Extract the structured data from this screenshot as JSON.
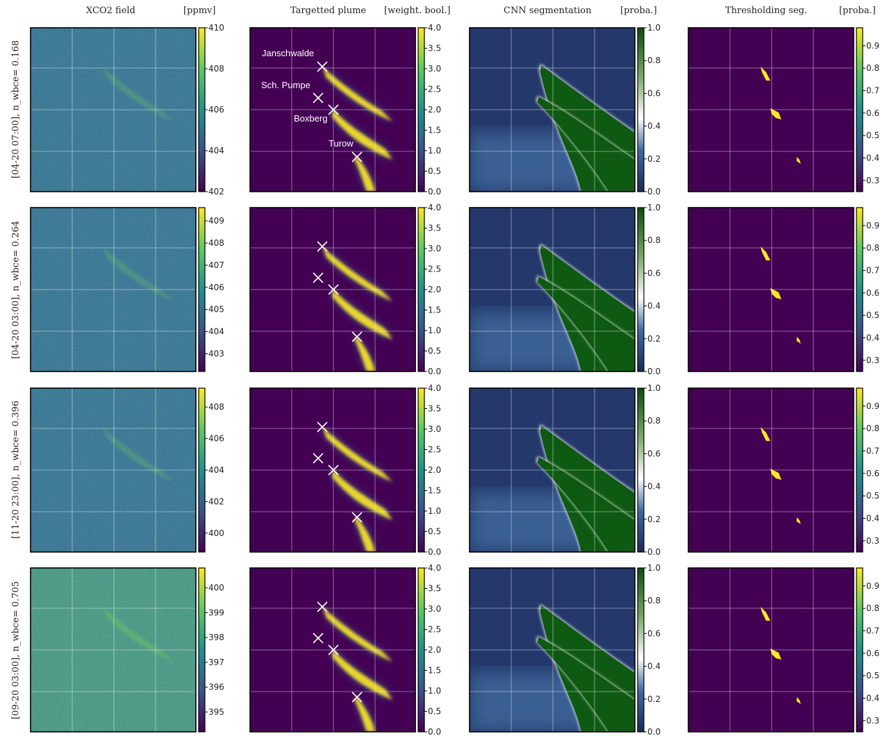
{
  "figure": {
    "columns": [
      {
        "title": "XCO2 field",
        "unit": "[ppmv]"
      },
      {
        "title": "Targetted plume",
        "unit": "[weight. bool.]"
      },
      {
        "title": "CNN segmentation",
        "unit": "[proba.]"
      },
      {
        "title": "Thresholding seg.",
        "unit": "[proba.]"
      }
    ],
    "rows": [
      {
        "label": "[04-20 07:00], n_wbce= 0.168"
      },
      {
        "label": "[04-20 03:00], n_wbce= 0.264"
      },
      {
        "label": "[11-20 23:00], n_wbce= 0.396"
      },
      {
        "label": "[09-20 03:00], n_wbce= 0.705"
      }
    ],
    "source_labels": [
      "Janschwalde",
      "Sch. Pumpe",
      "Boxberg",
      "Turow"
    ],
    "colormaps": {
      "viridis": [
        "#440154",
        "#3b528b",
        "#21918c",
        "#5ec962",
        "#fde725"
      ],
      "cnn": [
        "#1b2a55",
        "#3f6aa0",
        "#ffffff",
        "#7aa86a",
        "#0b4d0b"
      ]
    }
  },
  "chart_data": [
    {
      "type": "heatmap",
      "panel": "row1-xco2",
      "colorbar": {
        "unit": "[ppmv]",
        "range": [
          402,
          410
        ],
        "ticks": [
          402,
          404,
          406,
          408,
          410
        ]
      }
    },
    {
      "type": "heatmap",
      "panel": "row1-plume",
      "colorbar": {
        "unit": "[weight. bool.]",
        "range": [
          0,
          4
        ],
        "ticks": [
          0.0,
          0.5,
          1.0,
          1.5,
          2.0,
          2.5,
          3.0,
          3.5,
          4.0
        ]
      },
      "annotations": [
        "Janschwalde",
        "Sch. Pumpe",
        "Boxberg",
        "Turow"
      ]
    },
    {
      "type": "heatmap",
      "panel": "row1-cnn",
      "colorbar": {
        "unit": "[proba.]",
        "range": [
          0,
          1
        ],
        "ticks": [
          0.0,
          0.2,
          0.4,
          0.6,
          0.8,
          1.0
        ]
      }
    },
    {
      "type": "heatmap",
      "panel": "row1-threshold",
      "colorbar": {
        "unit": "[proba.]",
        "range": [
          0.25,
          0.98
        ],
        "ticks": [
          0.3,
          0.4,
          0.5,
          0.6,
          0.7,
          0.8,
          0.9
        ]
      }
    },
    {
      "type": "heatmap",
      "panel": "row2-xco2",
      "colorbar": {
        "unit": "[ppmv]",
        "range": [
          402.2,
          409.6
        ],
        "ticks": [
          403,
          404,
          405,
          406,
          407,
          408,
          409
        ]
      }
    },
    {
      "type": "heatmap",
      "panel": "row2-plume",
      "colorbar": {
        "unit": "[weight. bool.]",
        "range": [
          0,
          4
        ],
        "ticks": [
          0.0,
          0.5,
          1.0,
          1.5,
          2.0,
          2.5,
          3.0,
          3.5,
          4.0
        ]
      }
    },
    {
      "type": "heatmap",
      "panel": "row2-cnn",
      "colorbar": {
        "unit": "[proba.]",
        "range": [
          0,
          1
        ],
        "ticks": [
          0.0,
          0.2,
          0.4,
          0.6,
          0.8,
          1.0
        ]
      }
    },
    {
      "type": "heatmap",
      "panel": "row2-threshold",
      "colorbar": {
        "unit": "[proba.]",
        "range": [
          0.25,
          0.98
        ],
        "ticks": [
          0.3,
          0.4,
          0.5,
          0.6,
          0.7,
          0.8,
          0.9
        ]
      }
    },
    {
      "type": "heatmap",
      "panel": "row3-xco2",
      "colorbar": {
        "unit": "[ppmv]",
        "range": [
          398.8,
          409.2
        ],
        "ticks": [
          400,
          402,
          404,
          406,
          408
        ]
      }
    },
    {
      "type": "heatmap",
      "panel": "row3-plume",
      "colorbar": {
        "unit": "[weight. bool.]",
        "range": [
          0,
          4
        ],
        "ticks": [
          0.0,
          0.5,
          1.0,
          1.5,
          2.0,
          2.5,
          3.0,
          3.5,
          4.0
        ]
      }
    },
    {
      "type": "heatmap",
      "panel": "row3-cnn",
      "colorbar": {
        "unit": "[proba.]",
        "range": [
          0,
          1
        ],
        "ticks": [
          0.0,
          0.2,
          0.4,
          0.6,
          0.8,
          1.0
        ]
      }
    },
    {
      "type": "heatmap",
      "panel": "row3-threshold",
      "colorbar": {
        "unit": "[proba.]",
        "range": [
          0.25,
          0.98
        ],
        "ticks": [
          0.3,
          0.4,
          0.5,
          0.6,
          0.7,
          0.8,
          0.9
        ]
      }
    },
    {
      "type": "heatmap",
      "panel": "row4-xco2",
      "colorbar": {
        "unit": "[ppmv]",
        "range": [
          394.2,
          400.8
        ],
        "ticks": [
          395,
          396,
          397,
          398,
          399,
          400
        ]
      }
    },
    {
      "type": "heatmap",
      "panel": "row4-plume",
      "colorbar": {
        "unit": "[weight. bool.]",
        "range": [
          0,
          4
        ],
        "ticks": [
          0.0,
          0.5,
          1.0,
          1.5,
          2.0,
          2.5,
          3.0,
          3.5,
          4.0
        ]
      }
    },
    {
      "type": "heatmap",
      "panel": "row4-cnn",
      "colorbar": {
        "unit": "[proba.]",
        "range": [
          0,
          1
        ],
        "ticks": [
          0.0,
          0.2,
          0.4,
          0.6,
          0.8,
          1.0
        ]
      }
    },
    {
      "type": "heatmap",
      "panel": "row4-threshold",
      "colorbar": {
        "unit": "[proba.]",
        "range": [
          0.25,
          0.98
        ],
        "ticks": [
          0.3,
          0.4,
          0.5,
          0.6,
          0.7,
          0.8,
          0.9
        ]
      }
    }
  ]
}
